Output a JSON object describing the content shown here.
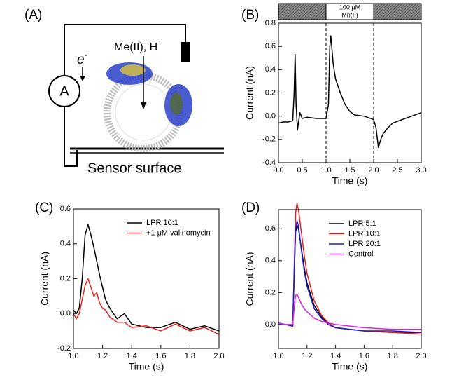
{
  "diagram": {
    "panel_label": "(A)",
    "electron_label": "e",
    "electron_charge": "-",
    "ammeter_label": "A",
    "ion_label": "Me(II), H",
    "ion_charge": "+",
    "surface_label": "Sensor surface"
  },
  "chart_data": [
    {
      "type": "line",
      "panel_label": "(B)",
      "x_label": "Time (s)",
      "y_label": "Current (nA)",
      "xlim": [
        0,
        3
      ],
      "ylim": [
        -0.4,
        0.8
      ],
      "xticks": [
        {
          "value": 0,
          "label": "0.0"
        },
        0.5,
        {
          "value": 1,
          "label": "1.0"
        },
        1.5,
        {
          "value": 2,
          "label": "2.0"
        },
        2.5,
        {
          "value": 3,
          "label": "3.0"
        }
      ],
      "yticks": [
        -0.4,
        -0.2,
        {
          "value": 0,
          "label": "0.0"
        },
        0.2,
        0.4,
        0.6,
        0.8
      ],
      "stimulus": [
        1.0,
        2.0
      ],
      "annotations": [
        "100 μM",
        "Mn(II)"
      ],
      "x": [
        0,
        0.1,
        0.2,
        0.3,
        0.33,
        0.35,
        0.37,
        0.4,
        0.45,
        0.5,
        0.6,
        0.8,
        1.0,
        1.05,
        1.08,
        1.1,
        1.15,
        1.2,
        1.3,
        1.4,
        1.5,
        1.6,
        1.8,
        2.0,
        2.05,
        2.1,
        2.15,
        2.2,
        2.3,
        2.4,
        2.6,
        2.8,
        3.0
      ],
      "series": [
        {
          "color": "#000000",
          "values": [
            -0.06,
            -0.05,
            -0.05,
            -0.04,
            0.2,
            0.53,
            0.1,
            -0.12,
            0.03,
            -0.02,
            -0.01,
            -0.02,
            -0.02,
            0.1,
            0.6,
            0.69,
            0.45,
            0.32,
            0.2,
            0.1,
            0.04,
            0.01,
            0.0,
            -0.03,
            -0.1,
            -0.27,
            -0.2,
            -0.15,
            -0.1,
            -0.06,
            -0.03,
            0.0,
            0.03
          ]
        }
      ]
    },
    {
      "type": "line",
      "panel_label": "(C)",
      "x_label": "Time (s)",
      "y_label": "Current (nA)",
      "xlim": [
        1,
        2
      ],
      "ylim": [
        -0.2,
        0.6
      ],
      "legend": "upper right",
      "xticks": [
        {
          "value": 1,
          "label": "1.0"
        },
        1.2,
        1.4,
        1.6,
        1.8,
        {
          "value": 2,
          "label": "2.0"
        }
      ],
      "yticks": [
        -0.2,
        {
          "value": 0,
          "label": "0.0"
        },
        0.2,
        0.4,
        0.6
      ],
      "x": [
        1.0,
        1.02,
        1.04,
        1.06,
        1.08,
        1.1,
        1.12,
        1.14,
        1.16,
        1.18,
        1.2,
        1.22,
        1.25,
        1.3,
        1.35,
        1.4,
        1.5,
        1.6,
        1.7,
        1.8,
        1.9,
        2.0
      ],
      "series": [
        {
          "name": "LPR 10:1",
          "color": "#000000",
          "values": [
            0.02,
            0.0,
            0.03,
            0.2,
            0.45,
            0.51,
            0.45,
            0.38,
            0.3,
            0.22,
            0.15,
            0.08,
            0.03,
            -0.03,
            0.0,
            -0.06,
            -0.08,
            -0.08,
            -0.05,
            -0.09,
            -0.07,
            -0.1
          ]
        },
        {
          "name": "+1 μM valinomycin",
          "color": "#e8201c",
          "values": [
            0.0,
            -0.03,
            0.0,
            0.08,
            0.16,
            0.2,
            0.15,
            0.1,
            0.12,
            0.06,
            0.03,
            0.02,
            -0.02,
            -0.05,
            -0.05,
            -0.08,
            -0.07,
            -0.1,
            -0.06,
            -0.1,
            -0.08,
            -0.12
          ]
        }
      ]
    },
    {
      "type": "line",
      "panel_label": "(D)",
      "x_label": "Time (s)",
      "y_label": "Current (nA)",
      "xlim": [
        1,
        2
      ],
      "ylim": [
        -0.15,
        0.72
      ],
      "legend": "upper right",
      "xticks": [
        {
          "value": 1,
          "label": "1.0"
        },
        1.2,
        1.4,
        1.6,
        1.8,
        {
          "value": 2,
          "label": "2.0"
        }
      ],
      "yticks": [
        {
          "value": 0,
          "label": "0.0"
        },
        0.2,
        0.4,
        0.6
      ],
      "x": [
        1.0,
        1.05,
        1.1,
        1.11,
        1.12,
        1.13,
        1.14,
        1.16,
        1.18,
        1.2,
        1.25,
        1.3,
        1.35,
        1.4,
        1.5,
        1.6,
        1.8,
        2.0
      ],
      "series": [
        {
          "name": "LPR 5:1",
          "color": "#000000",
          "values": [
            0,
            0,
            -0.01,
            0.3,
            0.58,
            0.62,
            0.6,
            0.48,
            0.36,
            0.26,
            0.12,
            0.05,
            0.0,
            -0.02,
            -0.03,
            -0.04,
            -0.05,
            -0.05
          ]
        },
        {
          "name": "LPR 10:1",
          "color": "#e8201c",
          "values": [
            0,
            0,
            -0.01,
            0.35,
            0.7,
            0.76,
            0.72,
            0.58,
            0.44,
            0.32,
            0.15,
            0.06,
            0.01,
            -0.02,
            -0.03,
            -0.04,
            -0.05,
            -0.06
          ]
        },
        {
          "name": "LPR 20:1",
          "color": "#1c1cd8",
          "values": [
            0,
            0,
            -0.01,
            0.3,
            0.6,
            0.65,
            0.62,
            0.47,
            0.34,
            0.24,
            0.1,
            0.04,
            0.0,
            -0.02,
            -0.03,
            -0.04,
            -0.04,
            -0.05
          ]
        },
        {
          "name": "Control",
          "color": "#e020e0",
          "values": [
            0.01,
            0,
            0.0,
            0.1,
            0.18,
            0.19,
            0.17,
            0.13,
            0.1,
            0.08,
            0.04,
            0.02,
            0.01,
            0,
            -0.01,
            -0.02,
            -0.03,
            -0.03
          ]
        }
      ]
    }
  ]
}
